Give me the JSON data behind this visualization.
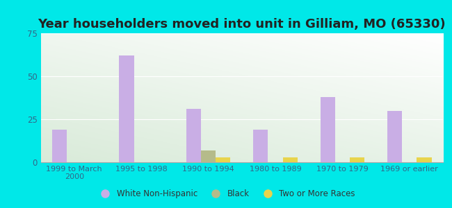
{
  "title": "Year householders moved into unit in Gilliam, MO (65330)",
  "categories": [
    "1999 to March\n2000",
    "1995 to 1998",
    "1990 to 1994",
    "1980 to 1989",
    "1970 to 1979",
    "1969 or earlier"
  ],
  "white_non_hispanic": [
    19,
    62,
    31,
    19,
    38,
    30
  ],
  "black": [
    0,
    0,
    7,
    0,
    0,
    0
  ],
  "two_or_more": [
    0,
    0,
    3,
    3,
    3,
    3
  ],
  "white_color": "#c9aee5",
  "black_color": "#b5bb8a",
  "two_or_more_color": "#e8d44d",
  "background_outer": "#00e8e8",
  "ylim": [
    0,
    75
  ],
  "yticks": [
    0,
    25,
    50,
    75
  ],
  "bar_width": 0.22,
  "title_fontsize": 13,
  "tick_label_color": "#336688"
}
